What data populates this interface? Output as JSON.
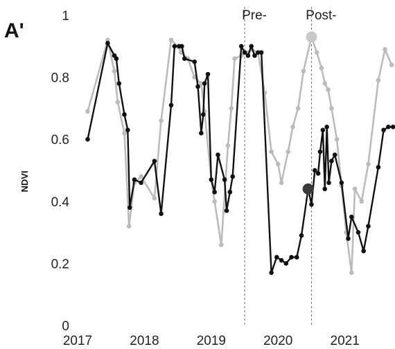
{
  "chart_data": {
    "type": "line",
    "panel_label": "A'",
    "title": "",
    "xlabel": "",
    "ylabel": "NDVI",
    "xlim": [
      2017.0,
      2021.75
    ],
    "ylim": [
      0,
      1
    ],
    "x_ticks": [
      2017,
      2018,
      2019,
      2020,
      2021
    ],
    "y_ticks": [
      0,
      0.2,
      0.4,
      0.6,
      0.8,
      1
    ],
    "y_tick_labels": [
      "0",
      "0.2",
      "0.4",
      "0.6",
      "0.8",
      "1"
    ],
    "grid": false,
    "legend": "none",
    "annotations": [
      {
        "label": "Pre-",
        "x": 2019.5
      },
      {
        "label": "Post-",
        "x": 2020.5
      }
    ],
    "series": [
      {
        "color": "#bbbbbb",
        "points": [
          [
            2017.15,
            0.69
          ],
          [
            2017.45,
            0.92
          ],
          [
            2017.55,
            0.82
          ],
          [
            2017.6,
            0.72
          ],
          [
            2017.7,
            0.62
          ],
          [
            2017.77,
            0.32
          ],
          [
            2017.85,
            0.46
          ],
          [
            2017.95,
            0.48
          ],
          [
            2018.15,
            0.41
          ],
          [
            2018.25,
            0.66
          ],
          [
            2018.4,
            0.92
          ],
          [
            2018.5,
            0.9
          ],
          [
            2018.55,
            0.88
          ],
          [
            2018.65,
            0.86
          ],
          [
            2018.75,
            0.8
          ],
          [
            2018.85,
            0.78
          ],
          [
            2018.9,
            0.69
          ],
          [
            2019.0,
            0.47
          ],
          [
            2019.05,
            0.4
          ],
          [
            2019.15,
            0.26
          ],
          [
            2019.25,
            0.58
          ],
          [
            2019.3,
            0.7
          ],
          [
            2019.35,
            0.86
          ],
          [
            2019.45,
            0.87
          ],
          [
            2019.55,
            0.88
          ],
          [
            2019.6,
            0.89
          ],
          [
            2019.7,
            0.88
          ],
          [
            2019.8,
            0.75
          ],
          [
            2019.9,
            0.56
          ],
          [
            2020.0,
            0.52
          ],
          [
            2020.05,
            0.46
          ],
          [
            2020.15,
            0.56
          ],
          [
            2020.22,
            0.64
          ],
          [
            2020.3,
            0.7
          ],
          [
            2020.38,
            0.82
          ],
          [
            2020.5,
            0.93
          ],
          [
            2020.58,
            0.88
          ],
          [
            2020.65,
            0.83
          ],
          [
            2020.7,
            0.78
          ],
          [
            2020.75,
            0.76
          ],
          [
            2020.8,
            0.7
          ],
          [
            2020.88,
            0.6
          ],
          [
            2020.95,
            0.45
          ],
          [
            2021.02,
            0.3
          ],
          [
            2021.1,
            0.17
          ],
          [
            2021.15,
            0.44
          ],
          [
            2021.25,
            0.4
          ],
          [
            2021.35,
            0.52
          ],
          [
            2021.5,
            0.79
          ],
          [
            2021.6,
            0.89
          ],
          [
            2021.7,
            0.84
          ]
        ],
        "highlight": [
          2020.5,
          0.93
        ]
      },
      {
        "color": "#111111",
        "points": [
          [
            2017.15,
            0.6
          ],
          [
            2017.45,
            0.91
          ],
          [
            2017.55,
            0.87
          ],
          [
            2017.58,
            0.86
          ],
          [
            2017.62,
            0.78
          ],
          [
            2017.7,
            0.68
          ],
          [
            2017.75,
            0.63
          ],
          [
            2017.78,
            0.38
          ],
          [
            2017.85,
            0.47
          ],
          [
            2017.95,
            0.46
          ],
          [
            2018.15,
            0.53
          ],
          [
            2018.25,
            0.36
          ],
          [
            2018.4,
            0.71
          ],
          [
            2018.45,
            0.9
          ],
          [
            2018.52,
            0.9
          ],
          [
            2018.56,
            0.9
          ],
          [
            2018.6,
            0.86
          ],
          [
            2018.75,
            0.85
          ],
          [
            2018.8,
            0.77
          ],
          [
            2018.85,
            0.62
          ],
          [
            2018.88,
            0.68
          ],
          [
            2018.9,
            0.78
          ],
          [
            2018.95,
            0.81
          ],
          [
            2019.0,
            0.47
          ],
          [
            2019.05,
            0.43
          ],
          [
            2019.1,
            0.55
          ],
          [
            2019.2,
            0.47
          ],
          [
            2019.23,
            0.37
          ],
          [
            2019.28,
            0.43
          ],
          [
            2019.32,
            0.48
          ],
          [
            2019.45,
            0.9
          ],
          [
            2019.5,
            0.88
          ],
          [
            2019.55,
            0.87
          ],
          [
            2019.6,
            0.9
          ],
          [
            2019.65,
            0.87
          ],
          [
            2019.7,
            0.88
          ],
          [
            2019.75,
            0.88
          ],
          [
            2019.9,
            0.17
          ],
          [
            2019.98,
            0.22
          ],
          [
            2020.05,
            0.21
          ],
          [
            2020.12,
            0.2
          ],
          [
            2020.2,
            0.22
          ],
          [
            2020.28,
            0.22
          ],
          [
            2020.35,
            0.29
          ],
          [
            2020.45,
            0.44
          ],
          [
            2020.5,
            0.39
          ],
          [
            2020.55,
            0.5
          ],
          [
            2020.6,
            0.49
          ],
          [
            2020.63,
            0.56
          ],
          [
            2020.67,
            0.63
          ],
          [
            2020.7,
            0.44
          ],
          [
            2020.73,
            0.64
          ],
          [
            2020.76,
            0.46
          ],
          [
            2020.8,
            0.53
          ],
          [
            2020.85,
            0.55
          ],
          [
            2020.95,
            0.46
          ],
          [
            2021.05,
            0.28
          ],
          [
            2021.1,
            0.35
          ],
          [
            2021.2,
            0.3
          ],
          [
            2021.28,
            0.24
          ],
          [
            2021.35,
            0.32
          ],
          [
            2021.5,
            0.51
          ],
          [
            2021.58,
            0.63
          ],
          [
            2021.65,
            0.64
          ],
          [
            2021.72,
            0.64
          ]
        ],
        "highlight": [
          2020.45,
          0.44
        ]
      }
    ]
  }
}
